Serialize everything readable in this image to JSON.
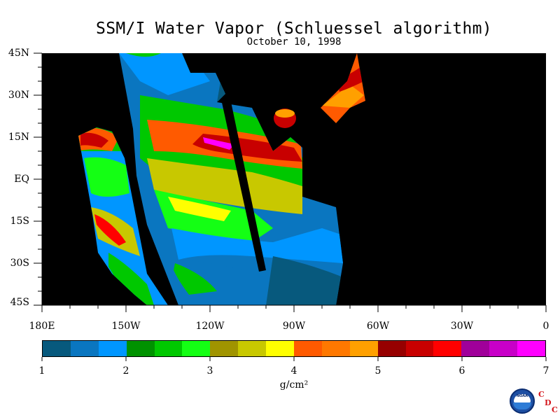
{
  "title": "SSM/I Water Vapor (Schluessel algorithm)",
  "subtitle": "October 10, 1998",
  "map": {
    "lat_labels": [
      "45N",
      "30N",
      "15N",
      "EQ",
      "15S",
      "30S",
      "45S"
    ],
    "lon_labels": [
      "180E",
      "150W",
      "120W",
      "90W",
      "60W",
      "30W",
      "0"
    ],
    "lat_range": [
      -45,
      45
    ],
    "lon_range": [
      -180,
      0
    ],
    "background": "#000000"
  },
  "colorbar": {
    "colors": [
      "#07597d",
      "#0a76c0",
      "#0096ff",
      "#009200",
      "#00c800",
      "#14ff14",
      "#a09400",
      "#c8c800",
      "#ffff00",
      "#ff5a00",
      "#ff7800",
      "#ffa000",
      "#960000",
      "#c80000",
      "#ff0000",
      "#a0009a",
      "#c800c8",
      "#ff00ff"
    ],
    "labels": [
      "1",
      "2",
      "3",
      "4",
      "5",
      "6",
      "7"
    ],
    "range": [
      1,
      7
    ],
    "units": "g/cm²"
  },
  "logo": {
    "agency": "NOAA",
    "letters": [
      "C",
      "D",
      "C"
    ]
  }
}
